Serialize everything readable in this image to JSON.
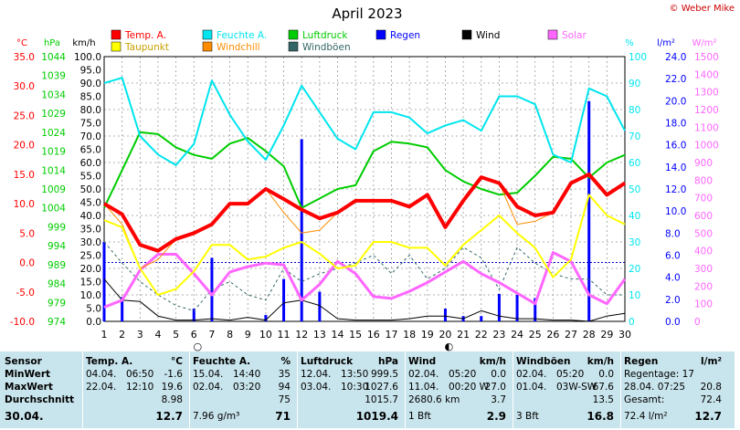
{
  "title": "April 2023",
  "copyright": "© Weber Mike",
  "legend": [
    {
      "label": "Temp. A.",
      "color": "#ff0000"
    },
    {
      "label": "Feuchte A.",
      "color": "#00e5ee"
    },
    {
      "label": "Luftdruck",
      "color": "#00cc00"
    },
    {
      "label": "Regen",
      "color": "#0000ff"
    },
    {
      "label": "Wind",
      "color": "#000000"
    },
    {
      "label": "Solar",
      "color": "#ff66ff"
    },
    {
      "label": "Taupunkt",
      "color": "#ffff00"
    },
    {
      "label": "Windchill",
      "color": "#ff8c00"
    },
    {
      "label": "Windböen",
      "color": "#336666"
    }
  ],
  "axes": {
    "temp_unit": "°C",
    "hpa_unit": "hPa",
    "kmh_unit": "km/h",
    "pct_unit": "%",
    "rain_unit": "l/m²",
    "solar_unit": "W/m²",
    "temp_ticks": [
      "35.0",
      "30.0",
      "25.0",
      "20.0",
      "15.0",
      "10.0",
      "5.0",
      "0.0",
      "-5.0",
      "-10.0"
    ],
    "hpa_ticks": [
      "1044",
      "1039",
      "1034",
      "1029",
      "1024",
      "1019",
      "1014",
      "1009",
      "1004",
      "999",
      "994",
      "989",
      "984",
      "979",
      "974"
    ],
    "kmh_ticks": [
      "100.0",
      "95.0",
      "90.0",
      "85.0",
      "80.0",
      "75.0",
      "70.0",
      "65.0",
      "60.0",
      "55.0",
      "50.0",
      "45.0",
      "40.0",
      "35.0",
      "30.0",
      "25.0",
      "20.0",
      "15.0",
      "10.0",
      "5.0",
      "0.0"
    ],
    "pct_ticks": [
      "100",
      "90",
      "80",
      "70",
      "60",
      "50",
      "40",
      "30",
      "20",
      "10",
      "0"
    ],
    "rain_ticks": [
      "24.0",
      "22.0",
      "20.0",
      "18.0",
      "16.0",
      "14.0",
      "12.0",
      "10.0",
      "8.0",
      "6.0",
      "4.0",
      "2.0",
      "0.0"
    ],
    "solar_ticks": [
      "1500",
      "1400",
      "1300",
      "1200",
      "1100",
      "1000",
      "900",
      "800",
      "700",
      "600",
      "500",
      "400",
      "300",
      "200",
      "100",
      "0"
    ],
    "x_ticks": [
      "1",
      "2",
      "3",
      "4",
      "5",
      "6",
      "7",
      "8",
      "9",
      "10",
      "11",
      "12",
      "13",
      "14",
      "15",
      "16",
      "17",
      "18",
      "19",
      "20",
      "21",
      "22",
      "23",
      "24",
      "25",
      "26",
      "27",
      "28",
      "29",
      "30"
    ]
  },
  "chart_data": {
    "type": "line",
    "title": "April 2023",
    "x": [
      1,
      2,
      3,
      4,
      5,
      6,
      7,
      8,
      9,
      10,
      11,
      12,
      13,
      14,
      15,
      16,
      17,
      18,
      19,
      20,
      21,
      22,
      23,
      24,
      25,
      26,
      27,
      28,
      29,
      30
    ],
    "x_range": [
      1,
      30
    ],
    "grid": true,
    "legend_position": "top",
    "series": [
      {
        "name": "Temp. A.",
        "axis": "°C",
        "ylim": [
          -10,
          35
        ],
        "color": "#ff0000",
        "values": [
          10.0,
          8.2,
          3.0,
          2.0,
          4.0,
          5.0,
          6.5,
          10.0,
          10.0,
          12.5,
          10.8,
          9.0,
          7.5,
          8.5,
          10.5,
          10.5,
          10.5,
          9.5,
          11.5,
          6.0,
          10.5,
          14.5,
          13.5,
          9.5,
          8.0,
          8.5,
          13.5,
          15.0,
          11.5,
          13.5
        ]
      },
      {
        "name": "Feuchte A.",
        "axis": "%",
        "ylim": [
          0,
          100
        ],
        "color": "#00e5ee",
        "values": [
          90,
          92,
          70,
          63,
          59,
          67,
          91,
          78,
          68,
          61,
          74,
          89,
          79,
          69,
          65,
          79,
          79,
          77,
          71,
          74,
          76,
          72,
          85,
          85,
          82,
          63,
          60,
          88,
          85,
          72
        ]
      },
      {
        "name": "Luftdruck",
        "axis": "hPa",
        "ylim": [
          974,
          1044
        ],
        "color": "#00cc00",
        "values": [
          1004,
          1014,
          1024,
          1023.5,
          1020,
          1018,
          1017,
          1021,
          1022.5,
          1019,
          1015,
          1004,
          1006.5,
          1009,
          1010,
          1019,
          1021.5,
          1021,
          1020,
          1014,
          1011,
          1009,
          1007.5,
          1008,
          1012.5,
          1017.5,
          1017,
          1012,
          1016,
          1018
        ]
      },
      {
        "name": "Regen",
        "axis": "l/m²",
        "ylim": [
          0,
          25
        ],
        "type": "bar",
        "color": "#0000ff",
        "values": [
          7.5,
          2.3,
          0,
          0,
          0,
          1.2,
          6.0,
          0,
          0,
          0.6,
          4.0,
          17.2,
          2.8,
          0,
          0,
          0,
          0,
          0,
          0,
          1.2,
          0.5,
          0.5,
          2.6,
          2.5,
          2.2,
          0,
          0,
          20.8,
          0,
          0
        ]
      },
      {
        "name": "Wind",
        "axis": "km/h",
        "ylim": [
          0,
          100
        ],
        "color": "#000000",
        "values": [
          16,
          8,
          7.5,
          2,
          0.5,
          0.5,
          1,
          0.5,
          1.5,
          0.5,
          7,
          8,
          6,
          1,
          0.5,
          0.5,
          0.5,
          1,
          2,
          2,
          1,
          4,
          2,
          1,
          1,
          0.5,
          0.5,
          0,
          2,
          3
        ]
      },
      {
        "name": "Windböen",
        "axis": "km/h",
        "ylim": [
          0,
          100
        ],
        "color": "#336666",
        "values": [
          30,
          22,
          15,
          10,
          6,
          4,
          12,
          15,
          10,
          8,
          20,
          15,
          18,
          20,
          22,
          25,
          18,
          25,
          16,
          20,
          28,
          24,
          12,
          28,
          22,
          18,
          16,
          16,
          10,
          10
        ]
      },
      {
        "name": "Taupunkt",
        "axis": "°C",
        "ylim": [
          -10,
          35
        ],
        "color": "#ffff00",
        "values": [
          7.2,
          6.0,
          -1.0,
          -5.5,
          -4.5,
          -1.5,
          3.0,
          3.0,
          0.5,
          1.0,
          2.5,
          3.5,
          1.5,
          -1.0,
          -0.5,
          3.5,
          3.5,
          2.5,
          2.5,
          -0.5,
          3.0,
          5.5,
          8.0,
          5.0,
          2.5,
          -2.5,
          0.5,
          11.5,
          8.0,
          6.5
        ]
      },
      {
        "name": "Windchill",
        "axis": "°C",
        "ylim": [
          -10,
          35
        ],
        "color": "#ff8c00",
        "values": [
          10.0,
          6.5,
          -1.0,
          0.5,
          4.0,
          5.0,
          6.5,
          10.0,
          10.0,
          12.5,
          8.5,
          5.0,
          5.5,
          8.5,
          10.5,
          10.5,
          10.5,
          9.5,
          11.5,
          6.0,
          10.5,
          14.5,
          13.5,
          6.5,
          7.0,
          8.5,
          13.5,
          15.0,
          11.5,
          13.5
        ]
      },
      {
        "name": "Solar",
        "axis": "W/m²",
        "ylim": [
          0,
          1500
        ],
        "color": "#ff66ff",
        "values": [
          80,
          120,
          290,
          380,
          380,
          270,
          150,
          280,
          310,
          330,
          320,
          120,
          210,
          340,
          270,
          140,
          130,
          170,
          220,
          280,
          340,
          270,
          220,
          160,
          100,
          390,
          340,
          150,
          100,
          240
        ]
      }
    ],
    "markers": [
      {
        "x": 6,
        "label": "○"
      },
      {
        "x": 20,
        "label": "◐"
      }
    ]
  },
  "stats": {
    "header": {
      "sensor": "Sensor",
      "temp": "Temp. A.",
      "temp_unit": "°C",
      "hum": "Feuchte A.",
      "hum_unit": "%",
      "press": "Luftdruck",
      "press_unit": "hPa",
      "wind": "Wind",
      "wind_unit": "km/h",
      "gust": "Windböen",
      "gust_unit": "km/h",
      "rain": "Regen",
      "rain_unit": "l/m²"
    },
    "rows": [
      {
        "label": "MinWert",
        "temp_date": "04.04.",
        "temp_time": "06:50",
        "temp_val": "-1.6",
        "hum_date": "15.04.",
        "hum_time": "14:40",
        "hum_val": "35",
        "press_date": "12.04.",
        "press_time": "13:50",
        "press_val": "999.5",
        "wind_date": "02.04.",
        "wind_time": "05:20",
        "wind_val": "0.0",
        "gust_date": "02.04.",
        "gust_time": "05:20",
        "gust_val": "0.0",
        "rain_text": "Regentage: 17",
        "rain_val": ""
      },
      {
        "label": "MaxWert",
        "temp_date": "22.04.",
        "temp_time": "12:10",
        "temp_val": "19.6",
        "hum_date": "02.04.",
        "hum_time": "03:20",
        "hum_val": "94",
        "press_date": "03.04.",
        "press_time": "10:30",
        "press_val": "1027.6",
        "wind_date": "11.04.",
        "wind_time": "00:20 W",
        "wind_val": "27.0",
        "gust_date": "01.04.",
        "gust_time": "03W-SW",
        "gust_val": "67.6",
        "rain_text": "28.04.   07:25",
        "rain_val": "20.8"
      },
      {
        "label": "Durchschnitt",
        "temp_date": "",
        "temp_time": "",
        "temp_val": "8.98",
        "hum_date": "",
        "hum_time": "",
        "hum_val": "75",
        "press_date": "",
        "press_time": "",
        "press_val": "1015.7",
        "wind_date": "2680.6 km",
        "wind_time": "",
        "wind_val": "3.7",
        "gust_date": "",
        "gust_time": "",
        "gust_val": "13.5",
        "rain_text": "Gesamt:",
        "rain_val": "72.4"
      },
      {
        "label": "30.04.",
        "temp_date": "",
        "temp_time": "",
        "temp_val": "12.7",
        "hum_date": "7.96 g/m³",
        "hum_time": "",
        "hum_val": "71",
        "press_date": "",
        "press_time": "",
        "press_val": "1019.4",
        "wind_date": "1 Bft",
        "wind_time": "",
        "wind_val": "2.9",
        "gust_date": "3 Bft",
        "gust_time": "",
        "gust_val": "16.8",
        "rain_text": "72.4 l/m²",
        "rain_val": "12.7"
      }
    ]
  }
}
